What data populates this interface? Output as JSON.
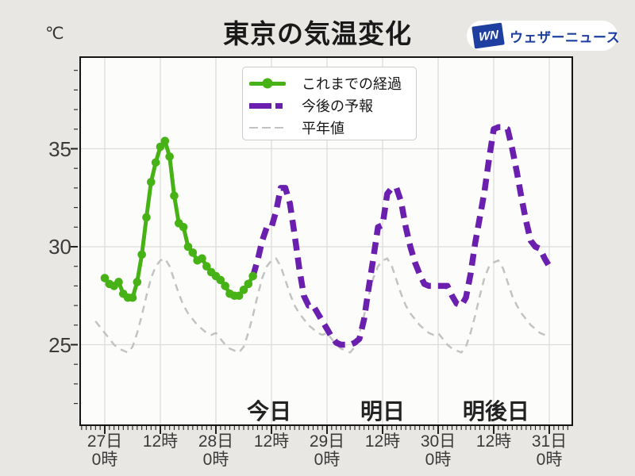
{
  "page": {
    "background": "#e9e7e4",
    "plot_background": "#fcfcfb"
  },
  "header": {
    "unit_label": "℃",
    "title": "東京の気温変化",
    "logo": {
      "mark_text": "WN",
      "brand_text": "ウェザーニュース",
      "color": "#1e3f9f"
    }
  },
  "day_labels": [
    {
      "text": "今日",
      "hour": 35.5
    },
    {
      "text": "明日",
      "hour": 60
    },
    {
      "text": "明後日",
      "hour": 84.5
    }
  ],
  "chart_data": {
    "type": "line",
    "title": "東京の気温変化",
    "ylabel": "℃",
    "ylim": [
      21,
      39.7
    ],
    "xlim_hours": [
      -5,
      101
    ],
    "grid": true,
    "legend_position": "upper-center-left",
    "y_ticks": [
      {
        "label": "25",
        "value": 25
      },
      {
        "label": "30",
        "value": 30
      },
      {
        "label": "35",
        "value": 35
      }
    ],
    "x_ticks": [
      {
        "day": "27日",
        "time": "0時",
        "hour": 0
      },
      {
        "day": "",
        "time": "12時",
        "hour": 12
      },
      {
        "day": "28日",
        "time": "0時",
        "hour": 24
      },
      {
        "day": "",
        "time": "12時",
        "hour": 36
      },
      {
        "day": "29日",
        "time": "0時",
        "hour": 48
      },
      {
        "day": "",
        "time": "12時",
        "hour": 60
      },
      {
        "day": "30日",
        "time": "0時",
        "hour": 72
      },
      {
        "day": "",
        "time": "12時",
        "hour": 84
      },
      {
        "day": "31日",
        "time": "0時",
        "hour": 96
      }
    ],
    "series": [
      {
        "name": "これまでの経過",
        "color": "#47b216",
        "line": "solid",
        "width": 5,
        "marker_radius": 5.3,
        "start_hour": 0,
        "step_hours": 1,
        "values": [
          28.4,
          28.1,
          28.0,
          28.2,
          27.6,
          27.4,
          27.4,
          28.2,
          29.6,
          31.5,
          33.3,
          34.3,
          35.1,
          35.4,
          34.6,
          32.6,
          31.2,
          31.0,
          30.0,
          29.7,
          29.3,
          29.4,
          29.0,
          28.7,
          28.5,
          28.3,
          28.0,
          27.6,
          27.5,
          27.5,
          27.8,
          28.1,
          28.5
        ]
      },
      {
        "name": "今後の予報",
        "color": "#6a1fae",
        "line": "dashed",
        "dash": [
          15,
          9
        ],
        "width": 7.5,
        "marker_radius": 0,
        "start_hour": 32,
        "step_hours": 1,
        "values": [
          28.5,
          29.3,
          30.3,
          31.0,
          31.0,
          31.8,
          33.0,
          33.0,
          32.2,
          30.6,
          28.9,
          27.5,
          27.0,
          27.0,
          26.6,
          26.2,
          25.8,
          25.4,
          25.1,
          25.0,
          25.0,
          25.0,
          25.1,
          25.3,
          26.3,
          27.9,
          29.4,
          31.0,
          31.1,
          32.7,
          33.0,
          33.0,
          32.3,
          31.0,
          30.0,
          29.2,
          28.6,
          28.1,
          28.0,
          28.0,
          28.0,
          28.0,
          28.0,
          27.5,
          27.1,
          27.0,
          27.4,
          28.6,
          30.2,
          31.5,
          32.8,
          34.5,
          36.0,
          36.1,
          36.1,
          36.0,
          35.0,
          33.8,
          32.5,
          31.3,
          30.3,
          30.0,
          29.9,
          29.4,
          29.0
        ]
      },
      {
        "name": "平年値",
        "color": "#c3c3c3",
        "line": "dashed",
        "dash": [
          9,
          7
        ],
        "width": 2.5,
        "marker_radius": 0,
        "start_hour": -2,
        "step_hours": 1,
        "values": [
          26.2,
          25.9,
          25.6,
          25.3,
          25.0,
          24.8,
          24.7,
          24.6,
          24.9,
          25.6,
          26.5,
          27.5,
          28.4,
          29.0,
          29.3,
          29.4,
          29.0,
          28.3,
          27.6,
          27.0,
          26.6,
          26.3,
          26.0,
          25.8,
          25.6,
          25.5,
          25.6,
          25.3,
          25.0,
          24.8,
          24.7,
          24.6,
          24.9,
          25.6,
          26.5,
          27.5,
          28.4,
          29.0,
          29.3,
          29.4,
          29.0,
          28.3,
          27.6,
          27.0,
          26.6,
          26.3,
          26.0,
          25.8,
          25.6,
          25.5,
          25.6,
          25.3,
          25.0,
          24.8,
          24.7,
          24.6,
          24.9,
          25.6,
          26.5,
          27.5,
          28.4,
          29.0,
          29.3,
          29.4,
          29.0,
          28.3,
          27.6,
          27.0,
          26.6,
          26.3,
          26.0,
          25.8,
          25.6,
          25.5,
          25.6,
          25.3,
          25.0,
          24.8,
          24.7,
          24.6,
          24.9,
          25.6,
          26.5,
          27.5,
          28.4,
          29.0,
          29.2,
          29.3,
          28.9,
          28.2,
          27.5,
          27.0,
          26.6,
          26.3,
          26.0,
          25.8,
          25.6,
          25.5,
          25.4
        ]
      }
    ]
  }
}
